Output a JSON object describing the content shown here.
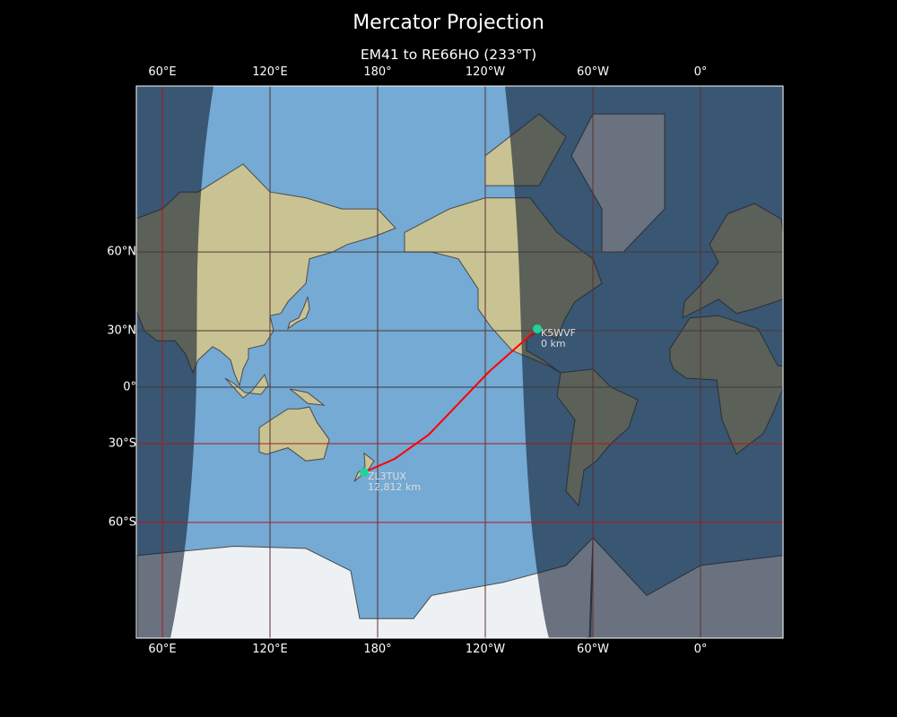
{
  "title": "Mercator Projection",
  "subtitle": "EM41 to RE66HO (233°T)",
  "map": {
    "projection": "Mercator",
    "central_longitude": 180,
    "colors": {
      "path": "#ff0000",
      "marker": "#1fd39a",
      "grid": "#8b1a1a",
      "label": "#dddddd"
    },
    "x_ticks": [
      "60°E",
      "120°E",
      "180°",
      "120°W",
      "60°W",
      "0°"
    ],
    "x_tick_lons": [
      60,
      120,
      180,
      -120,
      -60,
      0
    ],
    "y_ticks": [
      "60°N",
      "30°N",
      "0°",
      "30°S",
      "60°S"
    ],
    "y_tick_lats": [
      60,
      30,
      0,
      -30,
      -60
    ],
    "stations": [
      {
        "call": "K5WVF",
        "distance": "0 km",
        "lat": 30.9,
        "lon": -91
      },
      {
        "call": "ZL3TUX",
        "distance": "12,812 km",
        "lat": -42.8,
        "lon": 172.5
      }
    ],
    "path": [
      [
        30.9,
        -91
      ],
      [
        8.5,
        -118
      ],
      [
        -25.6,
        -151.5
      ],
      [
        -37.1,
        -170.5
      ],
      [
        -42.8,
        172.5
      ]
    ]
  }
}
